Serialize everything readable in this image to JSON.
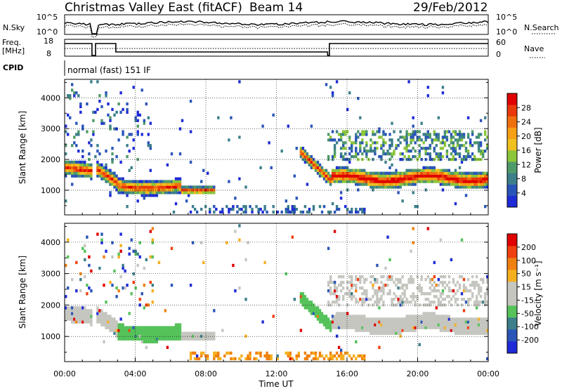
{
  "header": {
    "title": "Christmas Valley East (fitACF)",
    "beam": "Beam 14",
    "date": "29/Feb/2012"
  },
  "strip": {
    "nsky_label": "N.Sky",
    "nsky_ticks": [
      "10^5",
      "10^0"
    ],
    "nsearch_label": "N.Search",
    "nsearch_ticks": [
      "10^5",
      "10^0"
    ],
    "freq_label_1": "Freq.",
    "freq_label_2": "[MHz]",
    "freq_ticks": [
      "18",
      "8"
    ],
    "nave_label": "Nave",
    "nave_ticks": [
      "60",
      "0"
    ],
    "cpid_label": "CPID",
    "cpid_text": "normal (fast) 151 IF"
  },
  "colors": {
    "power_scale": [
      "#1f2bd6",
      "#2a55b8",
      "#3c7f8a",
      "#4f9a6a",
      "#8cc63a",
      "#f0c020",
      "#f5a015",
      "#f07010",
      "#ea3a0c",
      "#e00000"
    ],
    "velocity_scale": [
      "#1f2bd6",
      "#2a55b8",
      "#3c7f8a",
      "#55c25a",
      "#c6c6c0",
      "#c6c6c0",
      "#f5b020",
      "#f08010",
      "#f04010",
      "#e00000"
    ],
    "ground_scatter": "#c6c6c0"
  },
  "chart_data": [
    {
      "type": "heatmap",
      "name": "power",
      "ylabel": "Slant Range [km]",
      "yticks": [
        "1000",
        "2000",
        "3000",
        "4000"
      ],
      "ylim": [
        200,
        4600
      ],
      "xlim": [
        "00:00",
        "24:00"
      ],
      "colorbar_label": "Power [dB]",
      "colorbar_ticks": [
        "4",
        "8",
        "12",
        "16",
        "20",
        "24",
        "28"
      ],
      "colorbar_range": [
        0,
        32
      ]
    },
    {
      "type": "heatmap",
      "name": "velocity",
      "ylabel": "Slant Range [km]",
      "yticks": [
        "1000",
        "2000",
        "3000",
        "4000"
      ],
      "ylim": [
        200,
        4600
      ],
      "xlabel": "Time UT",
      "xticks": [
        "00:00",
        "04:00",
        "08:00",
        "12:00",
        "16:00",
        "20:00",
        "00:00"
      ],
      "colorbar_label": "Velocity [m s⁻¹]",
      "colorbar_ticks": [
        "200",
        "100",
        "50",
        "15",
        "-15",
        "-50",
        "-100",
        "-200"
      ]
    }
  ]
}
